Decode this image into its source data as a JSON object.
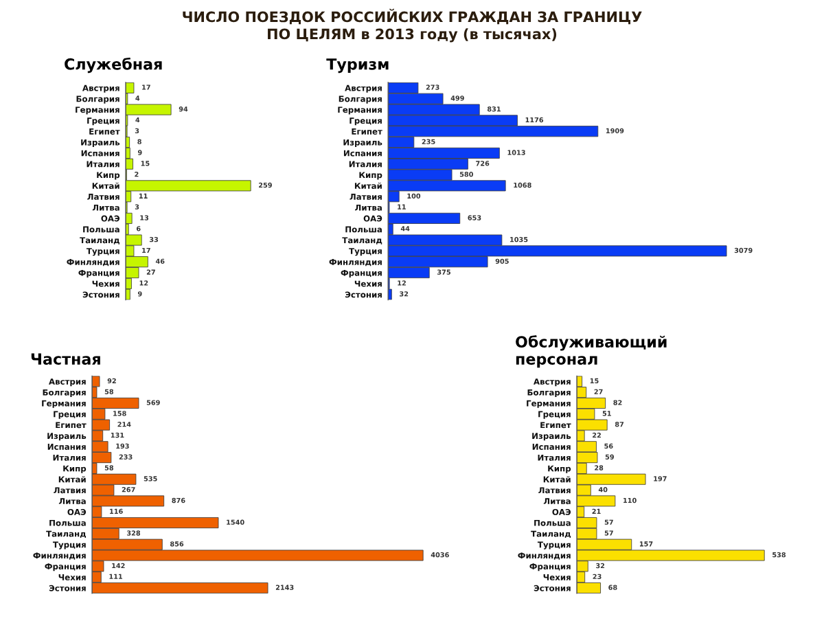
{
  "chart_data": [
    {
      "type": "bar",
      "orientation": "horizontal",
      "title": "Служебная",
      "annotations": [
        "ЧИСЛО ПОЕЗДОК РОССИЙСКИХ ГРАЖДАН ЗА ГРАНИЦУ\nПО ЦЕЛЯМ в 2013 году (в тысячах)"
      ],
      "categories": [
        "Австрия",
        "Болгария",
        "Германия",
        "Греция",
        "Египет",
        "Израиль",
        "Испания",
        "Италия",
        "Кипр",
        "Китай",
        "Латвия",
        "Литва",
        "ОАЭ",
        "Польша",
        "Таиланд",
        "Турция",
        "Финляндия",
        "Франция",
        "Чехия",
        "Эстония"
      ],
      "values": [
        17,
        4,
        94,
        4,
        3,
        8,
        9,
        15,
        2,
        259,
        11,
        3,
        13,
        6,
        33,
        17,
        46,
        27,
        12,
        9
      ],
      "color": "#c6f500",
      "data_labels": true,
      "tick_labels": "y",
      "grid": false,
      "legend": false
    },
    {
      "type": "bar",
      "orientation": "horizontal",
      "title": "Туризм",
      "categories": [
        "Австрия",
        "Болгария",
        "Германия",
        "Греция",
        "Египет",
        "Израиль",
        "Испания",
        "Италия",
        "Кипр",
        "Китай",
        "Латвия",
        "Литва",
        "ОАЭ",
        "Польша",
        "Таиланд",
        "Турция",
        "Финляндия",
        "Франция",
        "Чехия",
        "Эстония"
      ],
      "values": [
        273,
        499,
        831,
        1176,
        1909,
        235,
        1013,
        726,
        580,
        1068,
        100,
        11,
        653,
        44,
        1035,
        3079,
        905,
        375,
        12,
        32
      ],
      "color": "#0a3cf5",
      "data_labels": true,
      "tick_labels": "y",
      "grid": false,
      "legend": false
    },
    {
      "type": "bar",
      "orientation": "horizontal",
      "title": "Частная",
      "categories": [
        "Австрия",
        "Болгария",
        "Германия",
        "Греция",
        "Египет",
        "Израиль",
        "Испания",
        "Италия",
        "Кипр",
        "Китай",
        "Латвия",
        "Литва",
        "ОАЭ",
        "Польша",
        "Таиланд",
        "Турция",
        "Финляндия",
        "Франция",
        "Чехия",
        "Эстония"
      ],
      "values": [
        92,
        58,
        569,
        158,
        214,
        131,
        193,
        233,
        58,
        535,
        267,
        876,
        116,
        1540,
        328,
        856,
        4036,
        142,
        111,
        2143
      ],
      "color": "#ef6100",
      "data_labels": true,
      "tick_labels": "y",
      "grid": false,
      "legend": false
    },
    {
      "type": "bar",
      "orientation": "horizontal",
      "title": "Обслуживающий\nперсонал",
      "categories": [
        "Австрия",
        "Болгария",
        "Германия",
        "Греция",
        "Египет",
        "Израиль",
        "Испания",
        "Италия",
        "Кипр",
        "Китай",
        "Латвия",
        "Литва",
        "ОАЭ",
        "Польша",
        "Таиланд",
        "Турция",
        "Финляндия",
        "Франция",
        "Чехия",
        "Эстония"
      ],
      "values": [
        15,
        27,
        82,
        51,
        87,
        22,
        56,
        59,
        28,
        197,
        40,
        110,
        21,
        57,
        57,
        157,
        538,
        32,
        23,
        68
      ],
      "color": "#fbe000",
      "data_labels": true,
      "tick_labels": "y",
      "grid": false,
      "legend": false
    }
  ]
}
